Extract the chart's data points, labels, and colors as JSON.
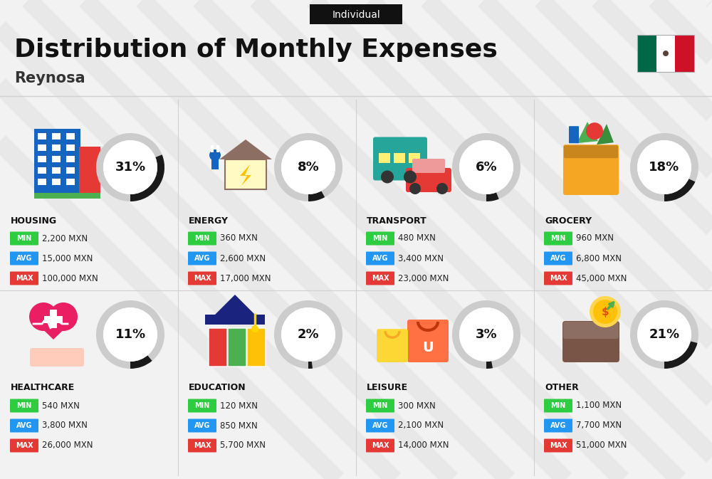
{
  "title": "Distribution of Monthly Expenses",
  "subtitle": "Individual",
  "city": "Reynosa",
  "background_color": "#f2f2f2",
  "categories": [
    {
      "name": "HOUSING",
      "percent": 31,
      "min": "2,200 MXN",
      "avg": "15,000 MXN",
      "max": "100,000 MXN",
      "row": 0,
      "col": 0
    },
    {
      "name": "ENERGY",
      "percent": 8,
      "min": "360 MXN",
      "avg": "2,600 MXN",
      "max": "17,000 MXN",
      "row": 0,
      "col": 1
    },
    {
      "name": "TRANSPORT",
      "percent": 6,
      "min": "480 MXN",
      "avg": "3,400 MXN",
      "max": "23,000 MXN",
      "row": 0,
      "col": 2
    },
    {
      "name": "GROCERY",
      "percent": 18,
      "min": "960 MXN",
      "avg": "6,800 MXN",
      "max": "45,000 MXN",
      "row": 0,
      "col": 3
    },
    {
      "name": "HEALTHCARE",
      "percent": 11,
      "min": "540 MXN",
      "avg": "3,800 MXN",
      "max": "26,000 MXN",
      "row": 1,
      "col": 0
    },
    {
      "name": "EDUCATION",
      "percent": 2,
      "min": "120 MXN",
      "avg": "850 MXN",
      "max": "5,700 MXN",
      "row": 1,
      "col": 1
    },
    {
      "name": "LEISURE",
      "percent": 3,
      "min": "300 MXN",
      "avg": "2,100 MXN",
      "max": "14,000 MXN",
      "row": 1,
      "col": 2
    },
    {
      "name": "OTHER",
      "percent": 21,
      "min": "1,100 MXN",
      "avg": "7,700 MXN",
      "max": "51,000 MXN",
      "row": 1,
      "col": 3
    }
  ],
  "min_color": "#2ecc40",
  "avg_color": "#2196F3",
  "max_color": "#e53935",
  "circle_dark": "#1a1a1a",
  "circle_light": "#cccccc",
  "flag_green": "#006847",
  "flag_white": "#ffffff",
  "flag_red": "#ce1126",
  "stripe_color": "#e8e8e8",
  "divider_color": "#d0d0d0"
}
